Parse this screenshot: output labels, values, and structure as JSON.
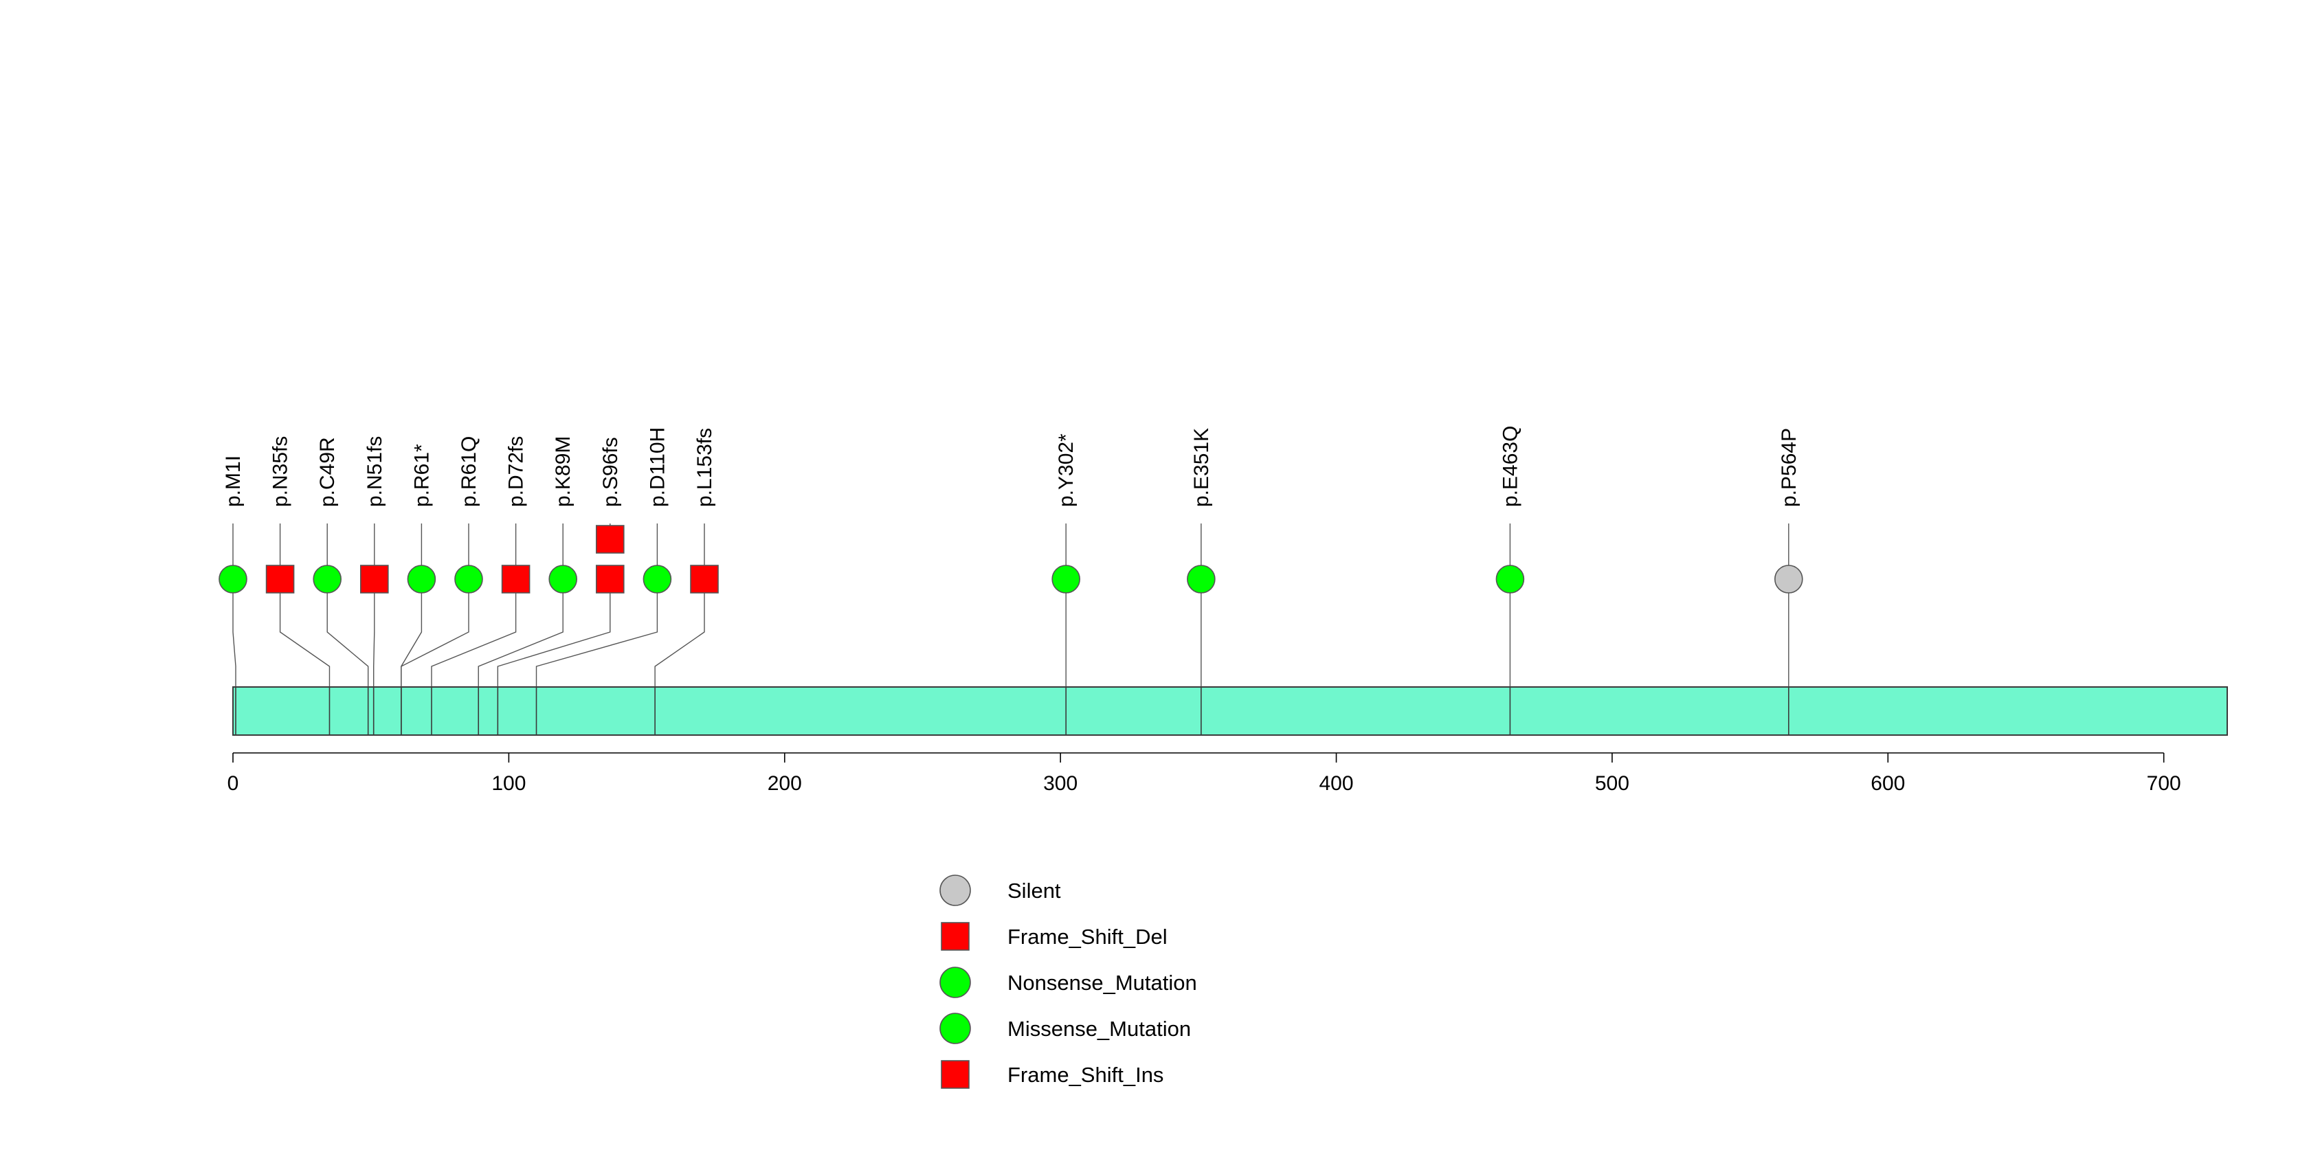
{
  "chart_data": {
    "type": "lollipop",
    "xlim": [
      0,
      723
    ],
    "x_ticks": [
      0,
      100,
      200,
      300,
      400,
      500,
      600,
      700
    ],
    "protein_length": 723,
    "mutations": [
      {
        "label": "p.M1I",
        "position": 1,
        "type": "Missense_Mutation",
        "count": 1
      },
      {
        "label": "p.N35fs",
        "position": 35,
        "type": "Frame_Shift_Del",
        "count": 1
      },
      {
        "label": "p.C49R",
        "position": 49,
        "type": "Missense_Mutation",
        "count": 1
      },
      {
        "label": "p.N51fs",
        "position": 51,
        "type": "Frame_Shift_Del",
        "count": 1
      },
      {
        "label": "p.R61*",
        "position": 61,
        "type": "Nonsense_Mutation",
        "count": 1
      },
      {
        "label": "p.R61Q",
        "position": 61,
        "type": "Missense_Mutation",
        "count": 1
      },
      {
        "label": "p.D72fs",
        "position": 72,
        "type": "Frame_Shift_Del",
        "count": 1
      },
      {
        "label": "p.K89M",
        "position": 89,
        "type": "Missense_Mutation",
        "count": 1
      },
      {
        "label": "p.S96fs",
        "position": 96,
        "type": "Frame_Shift_Del",
        "count": 2
      },
      {
        "label": "p.D110H",
        "position": 110,
        "type": "Missense_Mutation",
        "count": 1
      },
      {
        "label": "p.L153fs",
        "position": 153,
        "type": "Frame_Shift_Del",
        "count": 1
      },
      {
        "label": "p.Y302*",
        "position": 302,
        "type": "Nonsense_Mutation",
        "count": 1
      },
      {
        "label": "p.E351K",
        "position": 351,
        "type": "Missense_Mutation",
        "count": 1
      },
      {
        "label": "p.E463Q",
        "position": 463,
        "type": "Missense_Mutation",
        "count": 1
      },
      {
        "label": "p.P564P",
        "position": 564,
        "type": "Silent",
        "count": 1
      }
    ],
    "legend": [
      {
        "name": "Silent",
        "shape": "circle",
        "color": "#c8c8c8"
      },
      {
        "name": "Frame_Shift_Del",
        "shape": "square",
        "color": "#ff0000"
      },
      {
        "name": "Nonsense_Mutation",
        "shape": "circle",
        "color": "#00ff00"
      },
      {
        "name": "Missense_Mutation",
        "shape": "circle",
        "color": "#00ff00"
      },
      {
        "name": "Frame_Shift_Ins",
        "shape": "square",
        "color": "#ff0000"
      }
    ],
    "domain_color": "#70f7cd",
    "legend_placement": "bottom-center"
  }
}
